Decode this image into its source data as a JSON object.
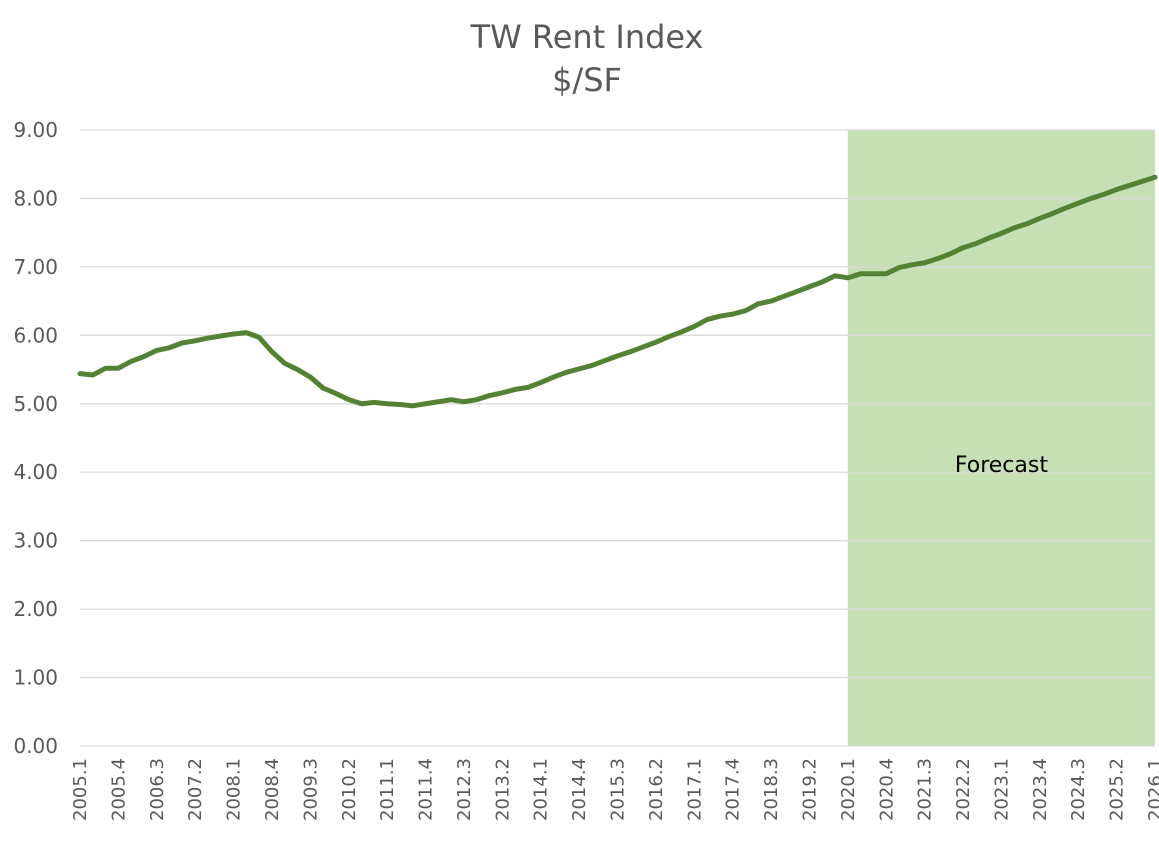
{
  "chart_data": {
    "type": "line",
    "title": "TW Rent Index",
    "subtitle": "$/SF",
    "ylim": [
      0,
      9
    ],
    "yticks": [
      "0.00",
      "1.00",
      "2.00",
      "3.00",
      "4.00",
      "5.00",
      "6.00",
      "7.00",
      "8.00",
      "9.00"
    ],
    "xticks": [
      "2005.1",
      "2005.4",
      "2006.3",
      "2007.2",
      "2008.1",
      "2008.4",
      "2009.3",
      "2010.2",
      "2011.1",
      "2011.4",
      "2012.3",
      "2013.2",
      "2014.1",
      "2014.4",
      "2015.3",
      "2016.2",
      "2017.1",
      "2017.4",
      "2018.3",
      "2019.2",
      "2020.1",
      "2020.4",
      "2021.3",
      "2022.2",
      "2023.1",
      "2023.4",
      "2024.3",
      "2025.2",
      "2026.1"
    ],
    "grid": true,
    "forecast_region": {
      "label": "Forecast",
      "start": "2020.1",
      "end": "2026.1"
    },
    "colors": {
      "line": "#548235",
      "forecast": "#c5e0b4",
      "grid": "#d9d9d9",
      "text": "#595959"
    },
    "series": [
      {
        "name": "TW Rent Index",
        "values": [
          5.44,
          5.42,
          5.52,
          5.52,
          5.62,
          5.69,
          5.78,
          5.82,
          5.89,
          5.92,
          5.96,
          5.99,
          6.02,
          6.04,
          5.97,
          5.76,
          5.59,
          5.5,
          5.39,
          5.23,
          5.15,
          5.06,
          5.0,
          5.02,
          5.0,
          4.99,
          4.97,
          5.0,
          5.03,
          5.06,
          5.03,
          5.06,
          5.12,
          5.16,
          5.21,
          5.24,
          5.31,
          5.39,
          5.46,
          5.51,
          5.56,
          5.63,
          5.7,
          5.76,
          5.83,
          5.9,
          5.98,
          6.05,
          6.13,
          6.23,
          6.28,
          6.31,
          6.36,
          6.46,
          6.5,
          6.57,
          6.64,
          6.71,
          6.78,
          6.87,
          6.84,
          6.9,
          6.9,
          6.9,
          6.99,
          7.03,
          7.06,
          7.12,
          7.19,
          7.28,
          7.34,
          7.42,
          7.49,
          7.57,
          7.63,
          7.71,
          7.78,
          7.86,
          7.93,
          8.0,
          8.06,
          8.13,
          8.19,
          8.25,
          8.31
        ]
      }
    ]
  }
}
